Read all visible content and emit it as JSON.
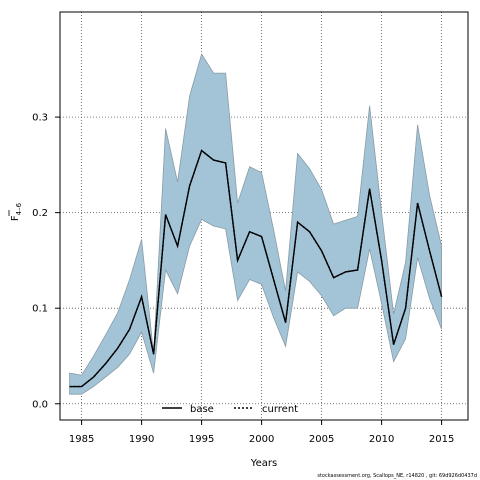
{
  "chart_data": {
    "type": "line",
    "title": "",
    "xlabel": "Years",
    "ylabel_main": "F",
    "ylabel_sub": "4–6",
    "xlim": [
      1983.2,
      2017.2
    ],
    "ylim": [
      -0.017,
      0.41
    ],
    "xticks": [
      1985,
      1990,
      1995,
      2000,
      2005,
      2010,
      2015
    ],
    "yticks": [
      0.0,
      0.1,
      0.2,
      0.3
    ],
    "ytick_labels": [
      "0.0",
      "0.1",
      "0.2",
      "0.3"
    ],
    "grid": true,
    "legend_position": "bottom-center",
    "band_color": "#a2c4d6",
    "band_edge_color": "#8a9ba6",
    "x": [
      1984,
      1985,
      1986,
      1987,
      1988,
      1989,
      1990,
      1991,
      1992,
      1993,
      1994,
      1995,
      1996,
      1997,
      1998,
      1999,
      2000,
      2001,
      2002,
      2003,
      2004,
      2005,
      2006,
      2007,
      2008,
      2009,
      2010,
      2011,
      2012,
      2013,
      2014,
      2015
    ],
    "series": [
      {
        "name": "base",
        "style": "solid",
        "color": "#000000",
        "values": [
          0.018,
          0.018,
          0.028,
          0.042,
          0.058,
          0.078,
          0.112,
          0.052,
          0.198,
          0.165,
          0.228,
          0.265,
          0.255,
          0.252,
          0.15,
          0.18,
          0.175,
          0.13,
          0.085,
          0.19,
          0.18,
          0.16,
          0.132,
          0.138,
          0.14,
          0.225,
          0.15,
          0.062,
          0.1,
          0.21,
          0.16,
          0.112
        ]
      },
      {
        "name": "current",
        "style": "dotted",
        "color": "#000000",
        "values": [
          0.018,
          0.018,
          0.028,
          0.042,
          0.058,
          0.078,
          0.112,
          0.052,
          0.198,
          0.165,
          0.228,
          0.265,
          0.255,
          0.252,
          0.15,
          0.18,
          0.175,
          0.13,
          0.085,
          0.19,
          0.18,
          0.16,
          0.132,
          0.138,
          0.14,
          0.225,
          0.15,
          0.062,
          0.1,
          0.21,
          0.16,
          0.112
        ]
      }
    ],
    "band": {
      "upper": [
        0.032,
        0.03,
        0.05,
        0.072,
        0.095,
        0.13,
        0.172,
        0.052,
        0.288,
        0.232,
        0.322,
        0.366,
        0.346,
        0.346,
        0.21,
        0.248,
        0.242,
        0.182,
        0.118,
        0.262,
        0.246,
        0.224,
        0.188,
        0.192,
        0.196,
        0.312,
        0.2,
        0.094,
        0.148,
        0.292,
        0.218,
        0.165
      ],
      "lower": [
        0.01,
        0.01,
        0.018,
        0.028,
        0.038,
        0.052,
        0.075,
        0.032,
        0.14,
        0.115,
        0.165,
        0.193,
        0.186,
        0.183,
        0.108,
        0.13,
        0.125,
        0.09,
        0.06,
        0.138,
        0.128,
        0.113,
        0.092,
        0.1,
        0.1,
        0.162,
        0.105,
        0.044,
        0.068,
        0.153,
        0.11,
        0.078
      ]
    }
  },
  "footer": "stockassessment.org, Scallops_NE, r14820 , git: 69d926d0437d"
}
